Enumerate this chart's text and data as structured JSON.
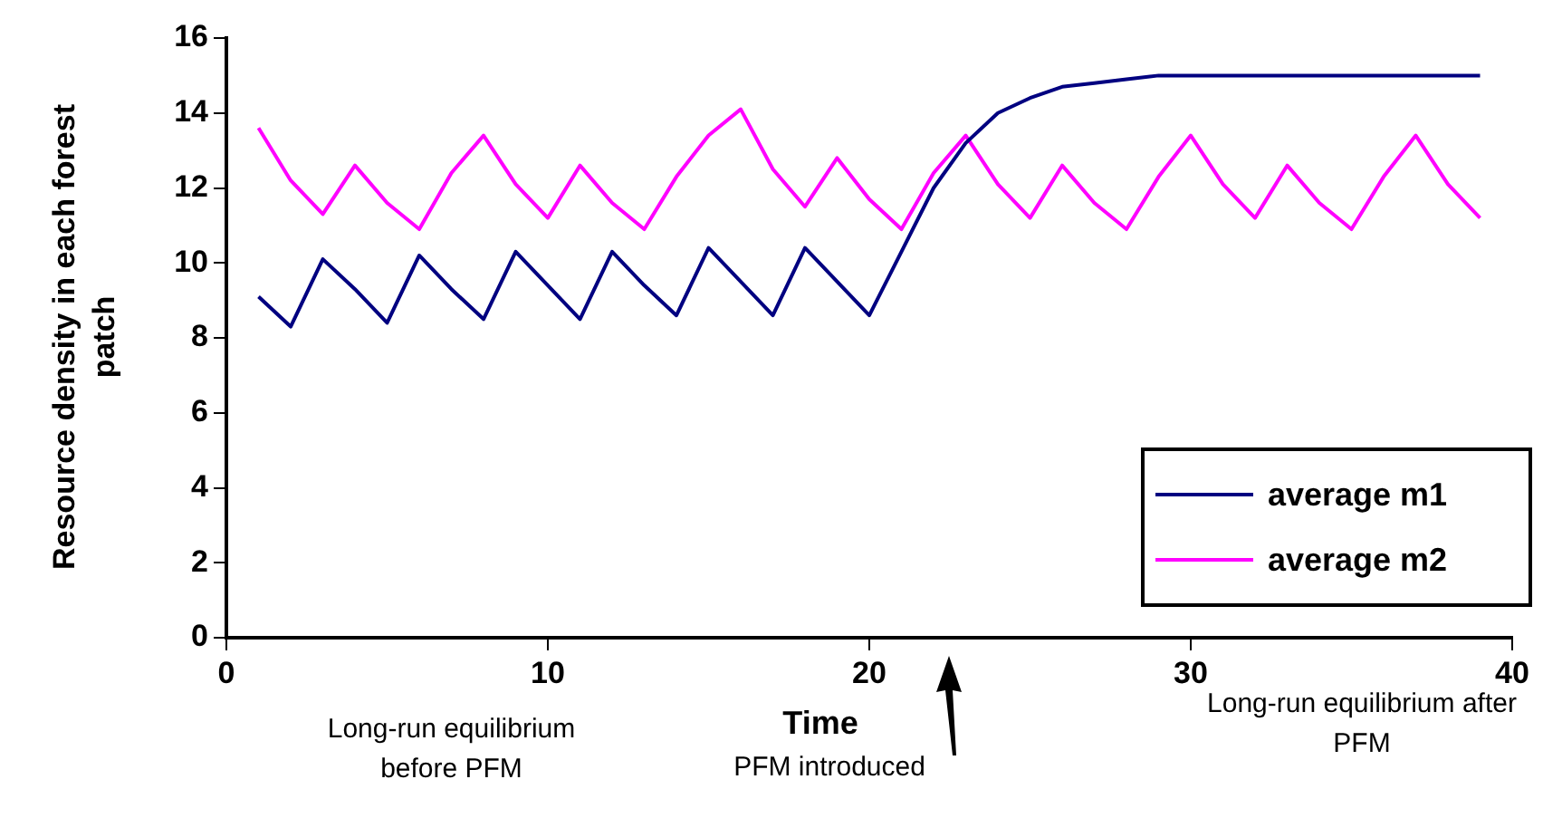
{
  "chart_data": {
    "type": "line",
    "xlabel": "Time",
    "ylabel": "Resource density in each forest patch",
    "x": [
      1,
      2,
      3,
      4,
      5,
      6,
      7,
      8,
      9,
      10,
      11,
      12,
      13,
      14,
      15,
      16,
      17,
      18,
      19,
      20,
      21,
      22,
      23,
      24,
      25,
      26,
      27,
      28,
      29,
      30,
      31,
      32,
      33,
      34,
      35,
      36,
      37,
      38,
      39
    ],
    "series": [
      {
        "name": "average m1",
        "color": "#000080",
        "values": [
          9.1,
          8.3,
          10.1,
          9.3,
          8.4,
          10.2,
          9.3,
          8.5,
          10.3,
          9.4,
          8.5,
          10.3,
          9.4,
          8.6,
          10.4,
          9.5,
          8.6,
          10.4,
          9.5,
          8.6,
          10.3,
          12.0,
          13.2,
          14.0,
          14.4,
          14.7,
          14.8,
          14.9,
          15,
          15,
          15,
          15,
          15,
          15,
          15,
          15,
          15,
          15,
          15
        ]
      },
      {
        "name": "average m2",
        "color": "#ff00ff",
        "values": [
          13.6,
          12.2,
          11.3,
          12.6,
          11.6,
          10.9,
          12.4,
          13.4,
          12.1,
          11.2,
          12.6,
          11.6,
          10.9,
          12.3,
          13.4,
          14.1,
          12.5,
          11.5,
          12.8,
          11.7,
          10.9,
          12.4,
          13.4,
          12.1,
          11.2,
          12.6,
          11.6,
          10.9,
          12.3,
          13.4,
          12.1,
          11.2,
          12.6,
          11.6,
          10.9,
          12.3,
          13.4,
          12.1,
          11.2
        ]
      }
    ],
    "xlim": [
      0,
      40
    ],
    "xticks": [
      0,
      10,
      20,
      30,
      40
    ],
    "ylim": [
      0,
      16
    ],
    "yticks": [
      0,
      2,
      4,
      6,
      8,
      10,
      12,
      14,
      16
    ],
    "grid": false,
    "legend": "bottom right",
    "marker": "none",
    "line_style": "solid",
    "annotations": [
      "Long-run equilibrium before PFM",
      "PFM introduced",
      "Long-run equilibrium after PFM"
    ]
  }
}
